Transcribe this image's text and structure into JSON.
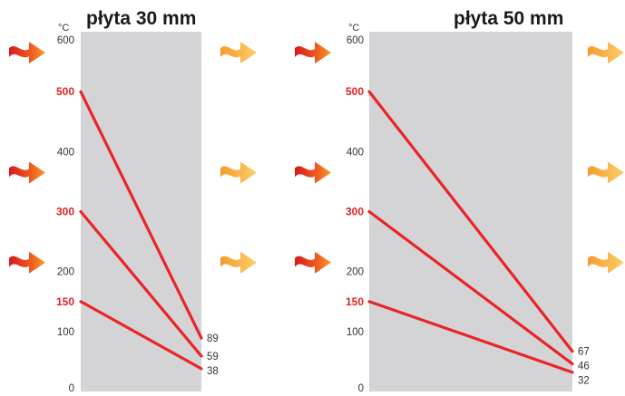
{
  "colors": {
    "panel": "#d4d4d6",
    "line": "#e8262a",
    "hot_label": "#e02020",
    "arrow_hot": "#e9431c",
    "arrow_warm": "#f7b13c"
  },
  "icons": {
    "inbound": "heat-wave-arrow-icon",
    "outbound": "heat-wave-arrow-icon"
  },
  "chart_data": [
    {
      "type": "line",
      "title": "płyta 30 mm",
      "ylabel": "°C",
      "ylim": [
        0,
        600
      ],
      "ytick_labels": [
        "0",
        "100",
        "150",
        "200",
        "300",
        "400",
        "500",
        "600"
      ],
      "highlighted_ticks": [
        150,
        300,
        500
      ],
      "series": [
        {
          "start": 500,
          "end": 89
        },
        {
          "start": 300,
          "end": 59
        },
        {
          "start": 150,
          "end": 38
        }
      ],
      "end_labels": [
        "89",
        "59",
        "38"
      ],
      "grid": false
    },
    {
      "type": "line",
      "title": "płyta 50 mm",
      "ylabel": "°C",
      "ylim": [
        0,
        600
      ],
      "ytick_labels": [
        "0",
        "100",
        "150",
        "200",
        "300",
        "400",
        "500",
        "600"
      ],
      "highlighted_ticks": [
        150,
        300,
        500
      ],
      "series": [
        {
          "start": 500,
          "end": 67
        },
        {
          "start": 300,
          "end": 46
        },
        {
          "start": 150,
          "end": 32
        }
      ],
      "end_labels": [
        "67",
        "46",
        "32"
      ],
      "grid": false
    }
  ]
}
